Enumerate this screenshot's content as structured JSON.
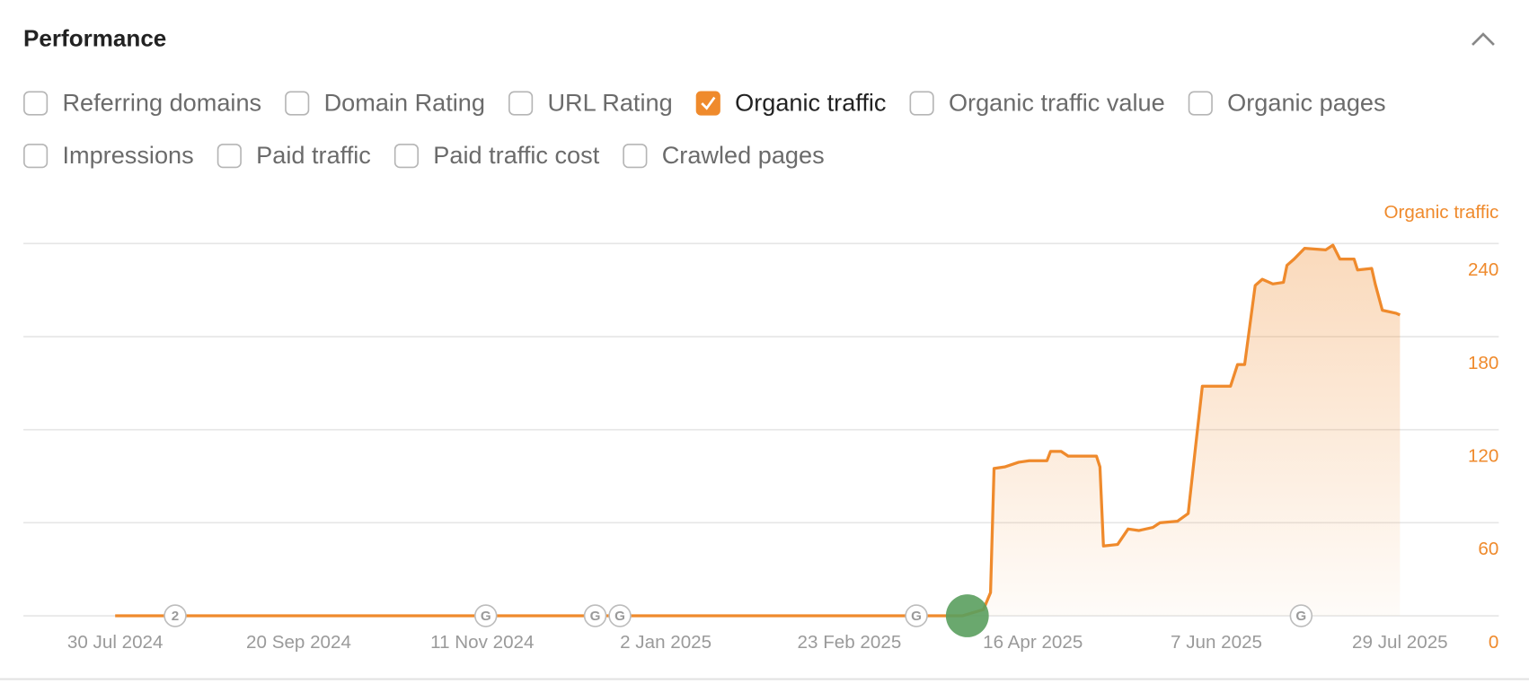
{
  "header": {
    "title": "Performance"
  },
  "filters": [
    {
      "label": "Referring domains",
      "checked": false
    },
    {
      "label": "Domain Rating",
      "checked": false
    },
    {
      "label": "URL Rating",
      "checked": false
    },
    {
      "label": "Organic traffic",
      "checked": true
    },
    {
      "label": "Organic traffic value",
      "checked": false
    },
    {
      "label": "Organic pages",
      "checked": false
    },
    {
      "label": "Impressions",
      "checked": false
    },
    {
      "label": "Paid traffic",
      "checked": false
    },
    {
      "label": "Paid traffic cost",
      "checked": false
    },
    {
      "label": "Crawled pages",
      "checked": false
    }
  ],
  "chart_data": {
    "type": "line",
    "y_axis_label": "Organic traffic",
    "grid": true,
    "area": true,
    "x": [
      "2024-07-30",
      "2025-03-27",
      "2025-04-02",
      "2025-04-04",
      "2025-04-05",
      "2025-04-08",
      "2025-04-12",
      "2025-04-15",
      "2025-04-20",
      "2025-04-21",
      "2025-04-24",
      "2025-04-26",
      "2025-05-04",
      "2025-05-05",
      "2025-05-06",
      "2025-05-10",
      "2025-05-13",
      "2025-05-16",
      "2025-05-20",
      "2025-05-22",
      "2025-05-27",
      "2025-05-30",
      "2025-06-01",
      "2025-06-03",
      "2025-06-11",
      "2025-06-13",
      "2025-06-15",
      "2025-06-18",
      "2025-06-20",
      "2025-06-23",
      "2025-06-26",
      "2025-06-27",
      "2025-06-29",
      "2025-07-02",
      "2025-07-08",
      "2025-07-10",
      "2025-07-12",
      "2025-07-16",
      "2025-07-17",
      "2025-07-21",
      "2025-07-22",
      "2025-07-24",
      "2025-07-28",
      "2025-07-29"
    ],
    "series": [
      {
        "name": "Organic traffic",
        "color": "#ef8a2c",
        "values": [
          0,
          0,
          4,
          15,
          95,
          96,
          99,
          100,
          100,
          106,
          106,
          103,
          103,
          96,
          45,
          46,
          56,
          55,
          57,
          60,
          61,
          66,
          107,
          148,
          148,
          162,
          162,
          213,
          217,
          214,
          215,
          226,
          230,
          237,
          236,
          239,
          230,
          230,
          223,
          224,
          214,
          197,
          195,
          194
        ]
      }
    ],
    "xlim": [
      "2024-07-04",
      "2025-08-26"
    ],
    "xticks": [
      {
        "value": "2024-07-30",
        "label": "30 Jul 2024"
      },
      {
        "value": "2024-09-20",
        "label": "20 Sep 2024"
      },
      {
        "value": "2024-11-11",
        "label": "11 Nov 2024"
      },
      {
        "value": "2025-01-02",
        "label": "2 Jan 2025"
      },
      {
        "value": "2025-02-23",
        "label": "23 Feb 2025"
      },
      {
        "value": "2025-04-16",
        "label": "16 Apr 2025"
      },
      {
        "value": "2025-06-07",
        "label": "7 Jun 2025"
      },
      {
        "value": "2025-07-29",
        "label": "29 Jul 2025"
      }
    ],
    "ylim": [
      0,
      240
    ],
    "yticks": [
      0,
      60,
      120,
      180,
      240
    ],
    "annotations": [
      {
        "date": "2024-08-16",
        "label": "2"
      },
      {
        "date": "2024-11-12",
        "label": "G"
      },
      {
        "date": "2024-12-13",
        "label": "G"
      },
      {
        "date": "2024-12-20",
        "label": "G"
      },
      {
        "date": "2025-03-14",
        "label": "G"
      },
      {
        "date": "2025-07-01",
        "label": "G"
      }
    ]
  }
}
